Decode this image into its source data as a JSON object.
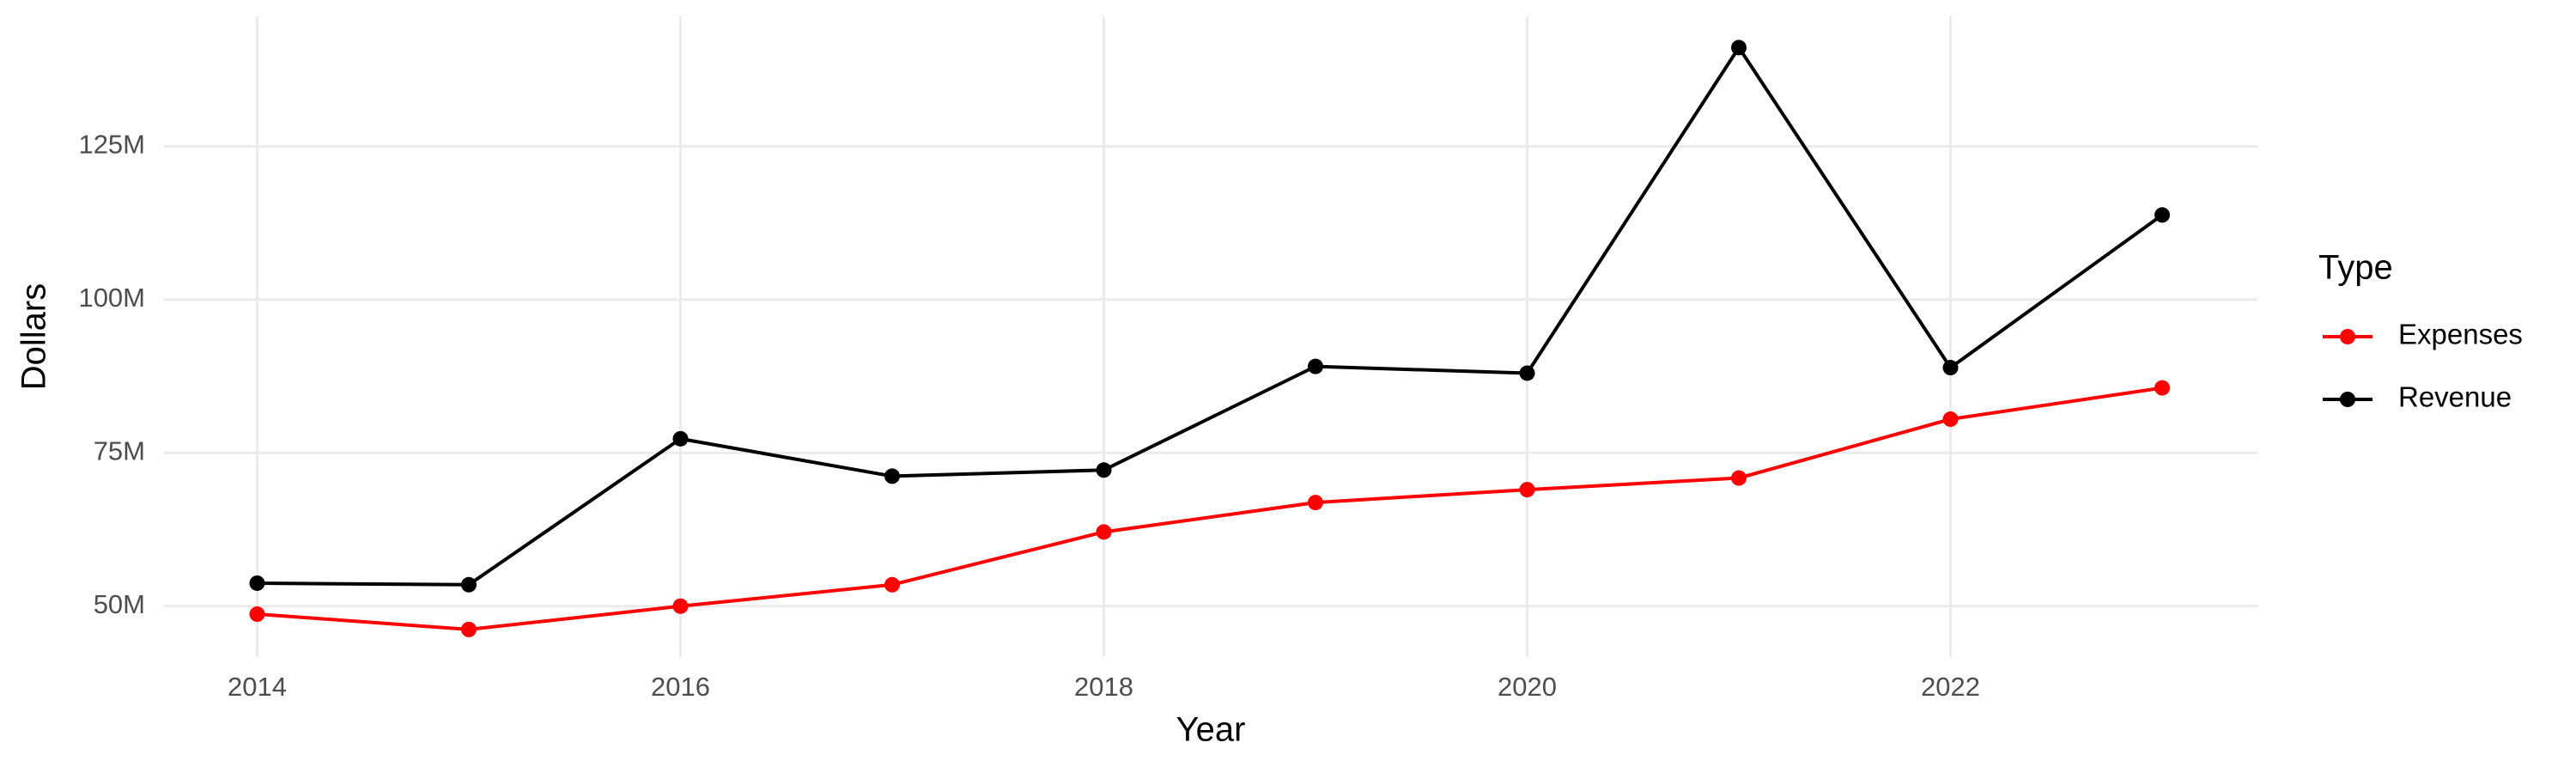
{
  "chart_data": {
    "type": "line",
    "x_label": "Year",
    "y_label": "Dollars",
    "legend_title": "Type",
    "legend_position": "right",
    "grid": true,
    "x": [
      2014,
      2015,
      2016,
      2017,
      2018,
      2019,
      2020,
      2021,
      2022,
      2023
    ],
    "series": [
      {
        "name": "Expenses",
        "color": "#ff0000",
        "values": [
          48700000,
          46200000,
          50000000,
          53500000,
          62100000,
          66900000,
          69000000,
          70900000,
          80500000,
          85600000
        ]
      },
      {
        "name": "Revenue",
        "color": "#000000",
        "values": [
          53750000,
          53500000,
          77300000,
          71200000,
          72200000,
          89100000,
          88000000,
          141100000,
          88900000,
          113800000
        ]
      }
    ],
    "xlim": [
      2013.56,
      2023.45
    ],
    "xticks": [
      2014,
      2016,
      2018,
      2020,
      2022
    ],
    "ylim": [
      41700000,
      146200000
    ],
    "yticks": [
      {
        "value": 50000000,
        "label": "50M"
      },
      {
        "value": 75000000,
        "label": "75M"
      },
      {
        "value": 100000000,
        "label": "100M"
      },
      {
        "value": 125000000,
        "label": "125M"
      }
    ]
  }
}
